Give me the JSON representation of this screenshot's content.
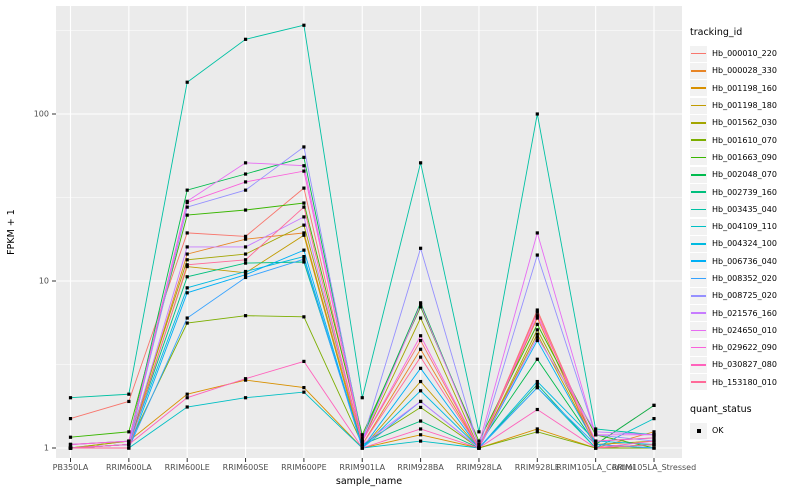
{
  "figure": {
    "background": "#FFFFFF",
    "panel_background": "#EBEBEB",
    "grid_color": "#FFFFFF",
    "axis_text_color": "#4D4D4D",
    "tick_color": "#333333",
    "point_color": "#000000"
  },
  "chart_data": {
    "type": "line",
    "title": "",
    "xlabel": "sample_name",
    "ylabel": "FPKM + 1",
    "y_scale": "log10",
    "y_ticks": [
      1,
      10,
      100
    ],
    "y_minor_ticks": [
      3.162,
      31.62,
      316.2
    ],
    "ylim": [
      0.87,
      440
    ],
    "legend_position": "right",
    "grid": true,
    "point_marker": "black-square",
    "categories": [
      "PB350LA",
      "RRIM600LA",
      "RRIM600LE",
      "RRIM600SE",
      "RRIM600PE",
      "RRIM901LA",
      "RRIM928BA",
      "RRIM928LA",
      "RRIM928LE",
      "RRIM105LA_Control",
      "RRIM105LA_Stressed"
    ],
    "series": [
      {
        "name": "Hb_000010_220",
        "color": "#F8766D",
        "values": [
          1.5,
          1.9,
          19.4,
          18.5,
          36,
          1.1,
          4.4,
          1.0,
          6.7,
          1.05,
          1.8
        ]
      },
      {
        "name": "Hb_000028_330",
        "color": "#E88526",
        "values": [
          1.0,
          1.05,
          14.5,
          17.8,
          19.4,
          1.05,
          3.9,
          1.0,
          6.0,
          1.0,
          1.25
        ]
      },
      {
        "name": "Hb_001198_160",
        "color": "#D89000",
        "values": [
          1.0,
          1.1,
          2.1,
          2.55,
          2.3,
          1.0,
          1.2,
          1.0,
          1.3,
          1.0,
          1.05
        ]
      },
      {
        "name": "Hb_001198_180",
        "color": "#C09B00",
        "values": [
          1.0,
          1.05,
          12.2,
          11.2,
          18.8,
          1.0,
          2.5,
          1.0,
          4.8,
          1.05,
          1.1
        ]
      },
      {
        "name": "Hb_001562_030",
        "color": "#A3A500",
        "values": [
          1.0,
          1.1,
          13.4,
          14.5,
          21.6,
          1.1,
          6.0,
          1.0,
          5.1,
          1.1,
          1.15
        ]
      },
      {
        "name": "Hb_001610_070",
        "color": "#7CAE00",
        "values": [
          1.0,
          1.05,
          5.6,
          6.2,
          6.1,
          1.05,
          1.75,
          1.0,
          1.25,
          1.0,
          1.0
        ]
      },
      {
        "name": "Hb_001663_090",
        "color": "#39B600",
        "values": [
          1.16,
          1.25,
          24.8,
          26.6,
          29.3,
          1.2,
          7.0,
          1.1,
          5.5,
          1.2,
          1.0
        ]
      },
      {
        "name": "Hb_002048_070",
        "color": "#00BB4E",
        "values": [
          1.05,
          1.1,
          35,
          43.7,
          55,
          1.15,
          7.4,
          1.05,
          3.4,
          1.05,
          1.8
        ]
      },
      {
        "name": "Hb_002739_160",
        "color": "#00BF7D",
        "values": [
          1.0,
          1.05,
          10.6,
          12.8,
          13.0,
          1.05,
          1.45,
          1.0,
          2.4,
          1.0,
          1.05
        ]
      },
      {
        "name": "Hb_003435_040",
        "color": "#00C1A3",
        "values": [
          2.0,
          2.1,
          155,
          280,
          340,
          2.0,
          51,
          1.25,
          100,
          1.3,
          1.2
        ]
      },
      {
        "name": "Hb_004109_110",
        "color": "#00BFC4",
        "values": [
          1.0,
          1.0,
          1.76,
          2.0,
          2.16,
          1.0,
          1.1,
          1.0,
          2.3,
          1.0,
          1.5
        ]
      },
      {
        "name": "Hb_004324_100",
        "color": "#00BAE0",
        "values": [
          1.0,
          1.05,
          9.1,
          11.4,
          14.0,
          1.0,
          2.2,
          1.0,
          2.5,
          1.1,
          1.05
        ]
      },
      {
        "name": "Hb_006736_040",
        "color": "#00B0F6",
        "values": [
          1.0,
          1.0,
          8.5,
          10.9,
          15.3,
          1.0,
          3.0,
          1.0,
          4.4,
          1.05,
          1.0
        ]
      },
      {
        "name": "Hb_008352_020",
        "color": "#35A2FF",
        "values": [
          1.0,
          1.0,
          6.0,
          10.5,
          13.5,
          1.0,
          1.9,
          1.0,
          2.3,
          1.05,
          1.0
        ]
      },
      {
        "name": "Hb_008725_020",
        "color": "#9590FF",
        "values": [
          1.0,
          1.05,
          27.7,
          35,
          63.5,
          1.1,
          15.7,
          1.0,
          14.3,
          1.2,
          1.1
        ]
      },
      {
        "name": "Hb_021576_160",
        "color": "#C77CFF",
        "values": [
          1.0,
          1.05,
          16.0,
          16.0,
          24.2,
          1.05,
          1.9,
          1.0,
          4.6,
          1.25,
          1.2
        ]
      },
      {
        "name": "Hb_024650_010",
        "color": "#E76BF3",
        "values": [
          1.05,
          1.1,
          30,
          51,
          49,
          1.1,
          7.2,
          1.05,
          19.4,
          1.2,
          1.2
        ]
      },
      {
        "name": "Hb_029622_090",
        "color": "#FA62DB",
        "values": [
          1.05,
          1.1,
          29.5,
          39.2,
          45.5,
          1.1,
          4.7,
          1.0,
          6.2,
          1.1,
          1.15
        ]
      },
      {
        "name": "Hb_030827_080",
        "color": "#FF62BC",
        "values": [
          1.0,
          1.05,
          2.0,
          2.6,
          3.3,
          1.0,
          1.3,
          1.0,
          1.7,
          1.0,
          1.1
        ]
      },
      {
        "name": "Hb_153180_010",
        "color": "#FF6A98",
        "values": [
          1.0,
          1.0,
          12.5,
          13.4,
          27.7,
          1.05,
          3.5,
          1.0,
          6.5,
          1.0,
          1.05
        ]
      }
    ]
  },
  "legends": {
    "tracking": {
      "title": "tracking_id"
    },
    "quant": {
      "title": "quant_status",
      "items": [
        {
          "label": "OK",
          "marker": "black-square"
        }
      ]
    }
  }
}
